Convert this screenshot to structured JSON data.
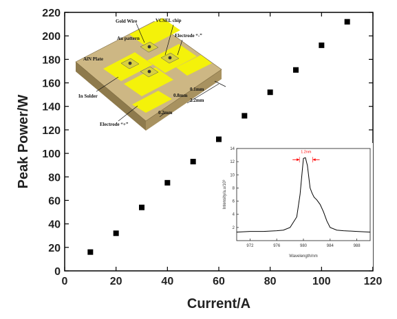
{
  "chart_data": [
    {
      "type": "scatter",
      "xlabel": "Current/A",
      "ylabel": "Peak Power/W",
      "xlim": [
        0,
        120
      ],
      "ylim": [
        0,
        220
      ],
      "x_ticks": [
        "0",
        "20",
        "40",
        "60",
        "80",
        "100",
        "120"
      ],
      "y_ticks": [
        "0",
        "20",
        "40",
        "60",
        "80",
        "100",
        "120",
        "140",
        "160",
        "180",
        "200",
        "220"
      ],
      "x": [
        10,
        20,
        30,
        40,
        50,
        60,
        70,
        80,
        90,
        100,
        110
      ],
      "y": [
        16,
        32,
        54,
        75,
        93,
        112,
        132,
        152,
        171,
        192,
        212
      ],
      "marker": "square",
      "color": "#000000"
    },
    {
      "type": "line",
      "xlabel": "Wavelength/nm",
      "ylabel": "Intensity/a.u/10³",
      "xlim": [
        970,
        990
      ],
      "ylim": [
        0,
        14
      ],
      "x_ticks": [
        "972",
        "976",
        "980",
        "984",
        "988"
      ],
      "y_ticks": [
        "2",
        "4",
        "6",
        "8",
        "10",
        "12",
        "14"
      ],
      "annotation": "1.2nm",
      "x": [
        970,
        972,
        974,
        976,
        977,
        978,
        979,
        979.5,
        980,
        980.3,
        980.6,
        981,
        981.3,
        981.6,
        982,
        982.5,
        983,
        983.5,
        984,
        985,
        986,
        988,
        990
      ],
      "y": [
        1.3,
        1.4,
        1.4,
        1.5,
        1.6,
        2.0,
        3.6,
        7.0,
        12.5,
        12.6,
        11.4,
        8.0,
        7.2,
        6.6,
        6.2,
        5.5,
        4.4,
        3.0,
        2.0,
        1.6,
        1.5,
        1.4,
        1.3
      ],
      "color": "#000000",
      "annotation_color": "#ff0000"
    }
  ],
  "diagram": {
    "labels": {
      "gold_wire": "Gold Wire",
      "vcsel_chip": "VCSEL chip",
      "au_pattern": "Au pattern",
      "electrode_minus": "Electrode “-”",
      "aln_plate": "AlN Plate",
      "in_solder": "In Solder",
      "electrode_plus": "Electrode “+”",
      "dim_01": "0.1mm",
      "dim_08": "0.8mm",
      "dim_22": "2.2mm",
      "dim_02": "0.2mm"
    },
    "colors": {
      "pad": "#f4f20a",
      "plate_top": "#cdb784",
      "plate_side": "#8e7a4c",
      "chip": "#d8d040"
    }
  }
}
